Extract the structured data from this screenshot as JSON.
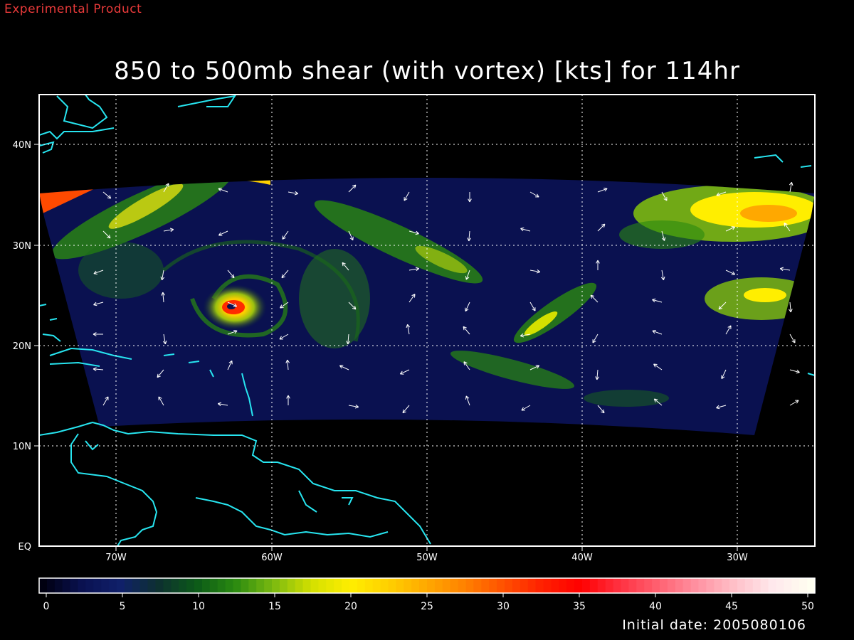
{
  "header": {
    "product_label": "Experimental Product",
    "title": "850 to 500mb shear (with vortex) [kts] for 114hr"
  },
  "footer": {
    "initial_date": "Initial date: 2005080106"
  },
  "map": {
    "lat_labels": [
      "40N",
      "30N",
      "20N",
      "10N",
      "EQ"
    ],
    "lon_labels": [
      "70W",
      "60W",
      "50W",
      "40W",
      "30W"
    ],
    "coastline_color": "#27e5f0"
  },
  "colorbar": {
    "ticks": [
      "0",
      "5",
      "10",
      "15",
      "20",
      "25",
      "30",
      "35",
      "40",
      "45",
      "50"
    ],
    "colors": [
      "#000010",
      "#0a1150",
      "#10206a",
      "#0d3030",
      "#0c5a18",
      "#2a8a10",
      "#7cba10",
      "#d4e000",
      "#ffee00",
      "#ffd000",
      "#ffa800",
      "#ff8000",
      "#ff5000",
      "#ff2000",
      "#ff0000",
      "#ff3040",
      "#ff6070",
      "#ff90a0",
      "#ffc0c8",
      "#ffe8ec",
      "#fffff0"
    ]
  }
}
